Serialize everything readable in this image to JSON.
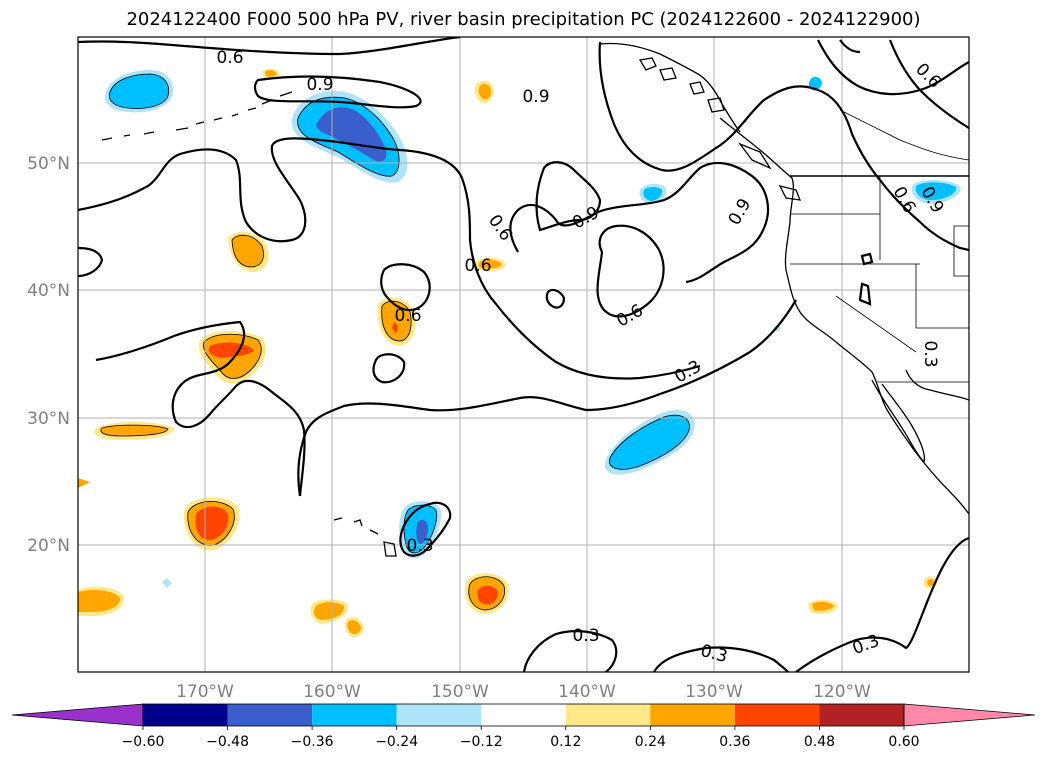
{
  "title": "2024122400 F000 500 hPa PV, river basin precipitation PC (2024122600 - 2024122900)",
  "map": {
    "lat_labels": [
      "50°N",
      "40°N",
      "30°N",
      "20°N"
    ],
    "lon_labels": [
      "170°W",
      "160°W",
      "150°W",
      "140°W",
      "130°W",
      "120°W"
    ],
    "contour_labels": [
      "0.6",
      "0.9",
      "0.9",
      "0.6",
      "0.9",
      "0.9",
      "0.6",
      "0.6",
      "0.6",
      "0.6",
      "0.9",
      "0.6",
      "0.3",
      "0.3",
      "0.3",
      "0.3",
      "0.3",
      "0.3"
    ],
    "colors": {
      "strong_negative": "#3a5fcd",
      "negative": "#00bfff",
      "weak_negative": "#aee3fa",
      "weak_positive": "#ffe88a",
      "positive": "#ffa500",
      "strong_positive": "#ff4500",
      "contour": "#000000",
      "grid": "#b0b0b0"
    }
  },
  "colorbar": {
    "ticks": [
      "−0.60",
      "−0.48",
      "−0.36",
      "−0.24",
      "−0.12",
      "0.12",
      "0.24",
      "0.36",
      "0.48",
      "0.60"
    ],
    "colors": [
      "#9932cc",
      "#00008b",
      "#3a5fcd",
      "#00bfff",
      "#aee3fa",
      "#ffffff",
      "#ffe88a",
      "#ffa500",
      "#ff4500",
      "#b22222",
      "#ff88aa"
    ]
  }
}
